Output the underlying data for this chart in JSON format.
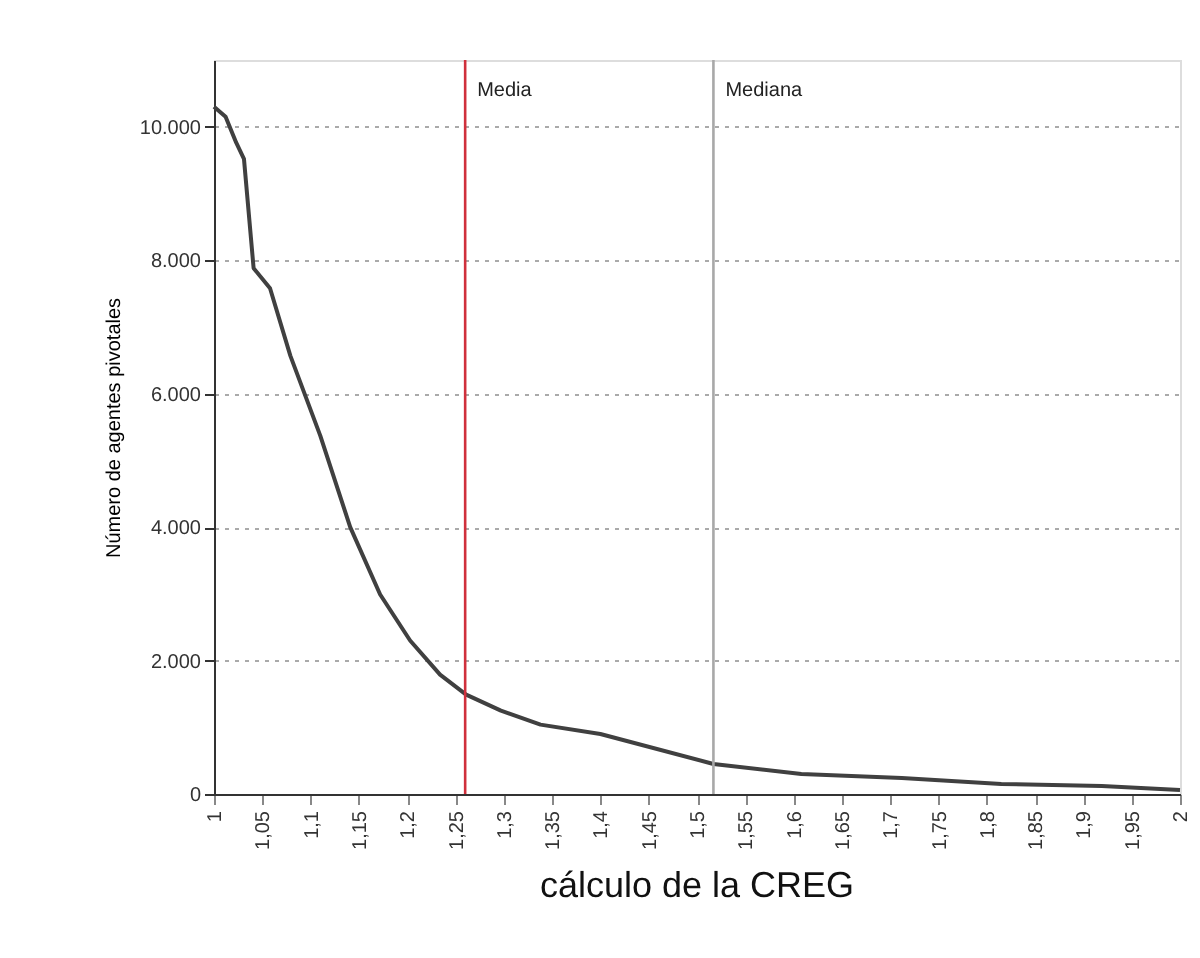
{
  "chart_data": {
    "type": "line",
    "ylabel": "Número de agentes pivotales",
    "annotations": [
      "cálculo de la CREG"
    ],
    "x": [
      1.0,
      1.012,
      1.023,
      1.031,
      1.041,
      1.058,
      1.079,
      1.11,
      1.141,
      1.172,
      1.203,
      1.234,
      1.261,
      1.297,
      1.338,
      1.4,
      1.517,
      1.608,
      1.712,
      1.815,
      1.919,
      2.0
    ],
    "series": [
      {
        "color": "#404040",
        "values": [
          10300,
          10150,
          9760,
          9520,
          7880,
          7580,
          6570,
          5370,
          4000,
          2990,
          2300,
          1790,
          1490,
          1250,
          1040,
          900,
          450,
          300,
          240,
          150,
          120,
          60
        ]
      }
    ],
    "xlim": [
      1,
      2
    ],
    "xticks": [
      1,
      {
        "value": 1.05,
        "label": "1,05"
      },
      {
        "value": 1.1,
        "label": "1,1"
      },
      {
        "value": 1.15,
        "label": "1,15"
      },
      {
        "value": 1.2,
        "label": "1,2"
      },
      {
        "value": 1.25,
        "label": "1,25"
      },
      {
        "value": 1.3,
        "label": "1,3"
      },
      {
        "value": 1.35,
        "label": "1,35"
      },
      {
        "value": 1.4,
        "label": "1,4"
      },
      {
        "value": 1.45,
        "label": "1,45"
      },
      {
        "value": 1.5,
        "label": "1,5"
      },
      {
        "value": 1.55,
        "label": "1,55"
      },
      {
        "value": 1.6,
        "label": "1,6"
      },
      {
        "value": 1.65,
        "label": "1,65"
      },
      {
        "value": 1.7,
        "label": "1,7"
      },
      {
        "value": 1.75,
        "label": "1,75"
      },
      {
        "value": 1.8,
        "label": "1,8"
      },
      {
        "value": 1.85,
        "label": "1,85"
      },
      {
        "value": 1.9,
        "label": "1,9"
      },
      {
        "value": 1.95,
        "label": "1,95"
      },
      2
    ],
    "ylim": [
      0,
      11000
    ],
    "yticks": [
      0,
      {
        "value": 2000,
        "label": "2.000"
      },
      {
        "value": 4000,
        "label": "4.000"
      },
      {
        "value": 6000,
        "label": "6.000"
      },
      {
        "value": 8000,
        "label": "8.000"
      },
      {
        "value": 10000,
        "label": "10.000"
      }
    ],
    "grid": "y",
    "marker": "none",
    "line_style": "solid",
    "ref_lines": [
      {
        "axis": "x",
        "value": 1.26,
        "label": "Media",
        "color": "#d0303c"
      },
      {
        "axis": "x",
        "value": 1.517,
        "label": "Mediana",
        "color": "#a8a8a8"
      }
    ]
  }
}
